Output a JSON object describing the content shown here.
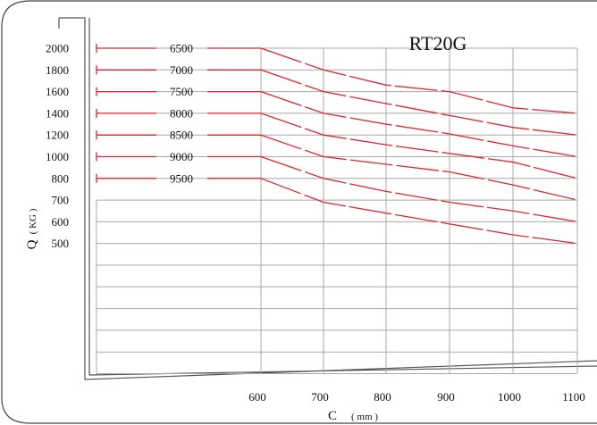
{
  "chart_data": {
    "type": "line",
    "title": "RT20G",
    "ylabel": "Q",
    "ylabel_unit": "( KG )",
    "xlabel": "C",
    "xlabel_unit": "( mm )",
    "y_tick_labels": [
      "2000",
      "1800",
      "1600",
      "1400",
      "1200",
      "1000",
      "800",
      "700",
      "600",
      "500"
    ],
    "x_tick_labels": [
      "600",
      "700",
      "800",
      "900",
      "1000",
      "1100"
    ],
    "x": [
      600,
      700,
      800,
      900,
      1000,
      1100
    ],
    "series": [
      {
        "name": "6500",
        "values": [
          2000,
          1800,
          1660,
          1600,
          1450,
          1400
        ]
      },
      {
        "name": "7000",
        "values": [
          1800,
          1600,
          1490,
          1380,
          1270,
          1200
        ]
      },
      {
        "name": "7500",
        "values": [
          1600,
          1400,
          1300,
          1210,
          1100,
          1000
        ]
      },
      {
        "name": "8000",
        "values": [
          1400,
          1200,
          1110,
          1030,
          950,
          800
        ]
      },
      {
        "name": "8500",
        "values": [
          1200,
          1000,
          930,
          860,
          770,
          700
        ]
      },
      {
        "name": "9000",
        "values": [
          1000,
          800,
          740,
          690,
          650,
          600
        ]
      },
      {
        "name": "9500",
        "values": [
          800,
          690,
          640,
          590,
          540,
          500
        ]
      }
    ],
    "colors": {
      "line": "#e0262e",
      "grid": "#a8a8a8",
      "frame": "#444444"
    },
    "grid": true
  }
}
